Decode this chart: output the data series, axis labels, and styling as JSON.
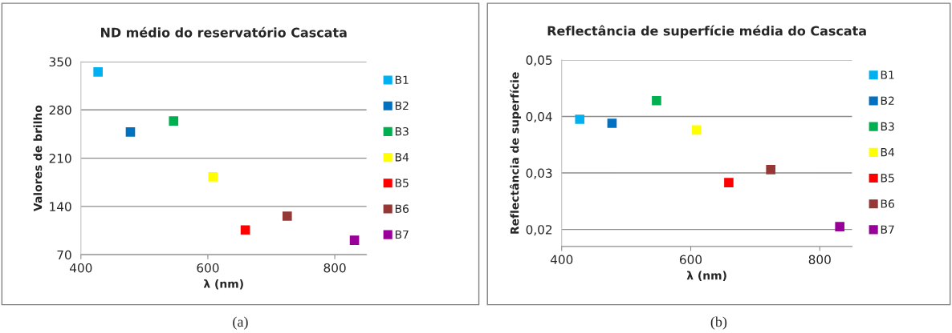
{
  "chart_data": [
    {
      "type": "scatter",
      "title": "ND médio do reservatório Cascata",
      "xlabel": "λ (nm)",
      "ylabel": "Valores de brilho",
      "xlim": [
        400,
        850
      ],
      "xticks": [
        400,
        600,
        800
      ],
      "ylim": [
        70,
        350
      ],
      "yticks": [
        70,
        140,
        210,
        280,
        350
      ],
      "grid": "y",
      "legend": "right",
      "marker": "square",
      "annotations": [
        "(a)"
      ],
      "series": [
        {
          "name": "B1",
          "color": "#00b0f0",
          "x": [
            427
          ],
          "values": [
            335
          ]
        },
        {
          "name": "B2",
          "color": "#0070c0",
          "x": [
            478
          ],
          "values": [
            248
          ]
        },
        {
          "name": "B3",
          "color": "#00b050",
          "x": [
            546
          ],
          "values": [
            264
          ]
        },
        {
          "name": "B4",
          "color": "#ffff00",
          "x": [
            608
          ],
          "values": [
            183
          ]
        },
        {
          "name": "B5",
          "color": "#ff0000",
          "x": [
            659
          ],
          "values": [
            106
          ]
        },
        {
          "name": "B6",
          "color": "#953735",
          "x": [
            725
          ],
          "values": [
            126
          ]
        },
        {
          "name": "B7",
          "color": "#990099",
          "x": [
            831
          ],
          "values": [
            91
          ]
        }
      ]
    },
    {
      "type": "scatter",
      "title": "Reflectância de superfície média do Cascata",
      "xlabel": "λ (nm)",
      "ylabel": "Reflectância de superfície",
      "xlim": [
        400,
        850
      ],
      "xticks": [
        400,
        600,
        800
      ],
      "ylim": [
        0.017,
        0.05
      ],
      "yticks": [
        {
          "value": 0.02,
          "label": "0,02"
        },
        {
          "value": 0.03,
          "label": "0,03"
        },
        {
          "value": 0.04,
          "label": "0,04"
        },
        {
          "value": 0.05,
          "label": "0,05"
        }
      ],
      "grid": "y",
      "legend": "right",
      "marker": "square",
      "annotations": [
        "(b)"
      ],
      "series": [
        {
          "name": "B1",
          "color": "#00b0f0",
          "x": [
            428
          ],
          "values": [
            0.0395
          ]
        },
        {
          "name": "B2",
          "color": "#0070c0",
          "x": [
            478
          ],
          "values": [
            0.0388
          ]
        },
        {
          "name": "B3",
          "color": "#00b050",
          "x": [
            547
          ],
          "values": [
            0.0428
          ]
        },
        {
          "name": "B4",
          "color": "#ffff00",
          "x": [
            609
          ],
          "values": [
            0.0376
          ]
        },
        {
          "name": "B5",
          "color": "#ff0000",
          "x": [
            659
          ],
          "values": [
            0.0283
          ]
        },
        {
          "name": "B6",
          "color": "#953735",
          "x": [
            724
          ],
          "values": [
            0.0306
          ]
        },
        {
          "name": "B7",
          "color": "#990099",
          "x": [
            831
          ],
          "values": [
            0.0205
          ]
        }
      ]
    }
  ]
}
